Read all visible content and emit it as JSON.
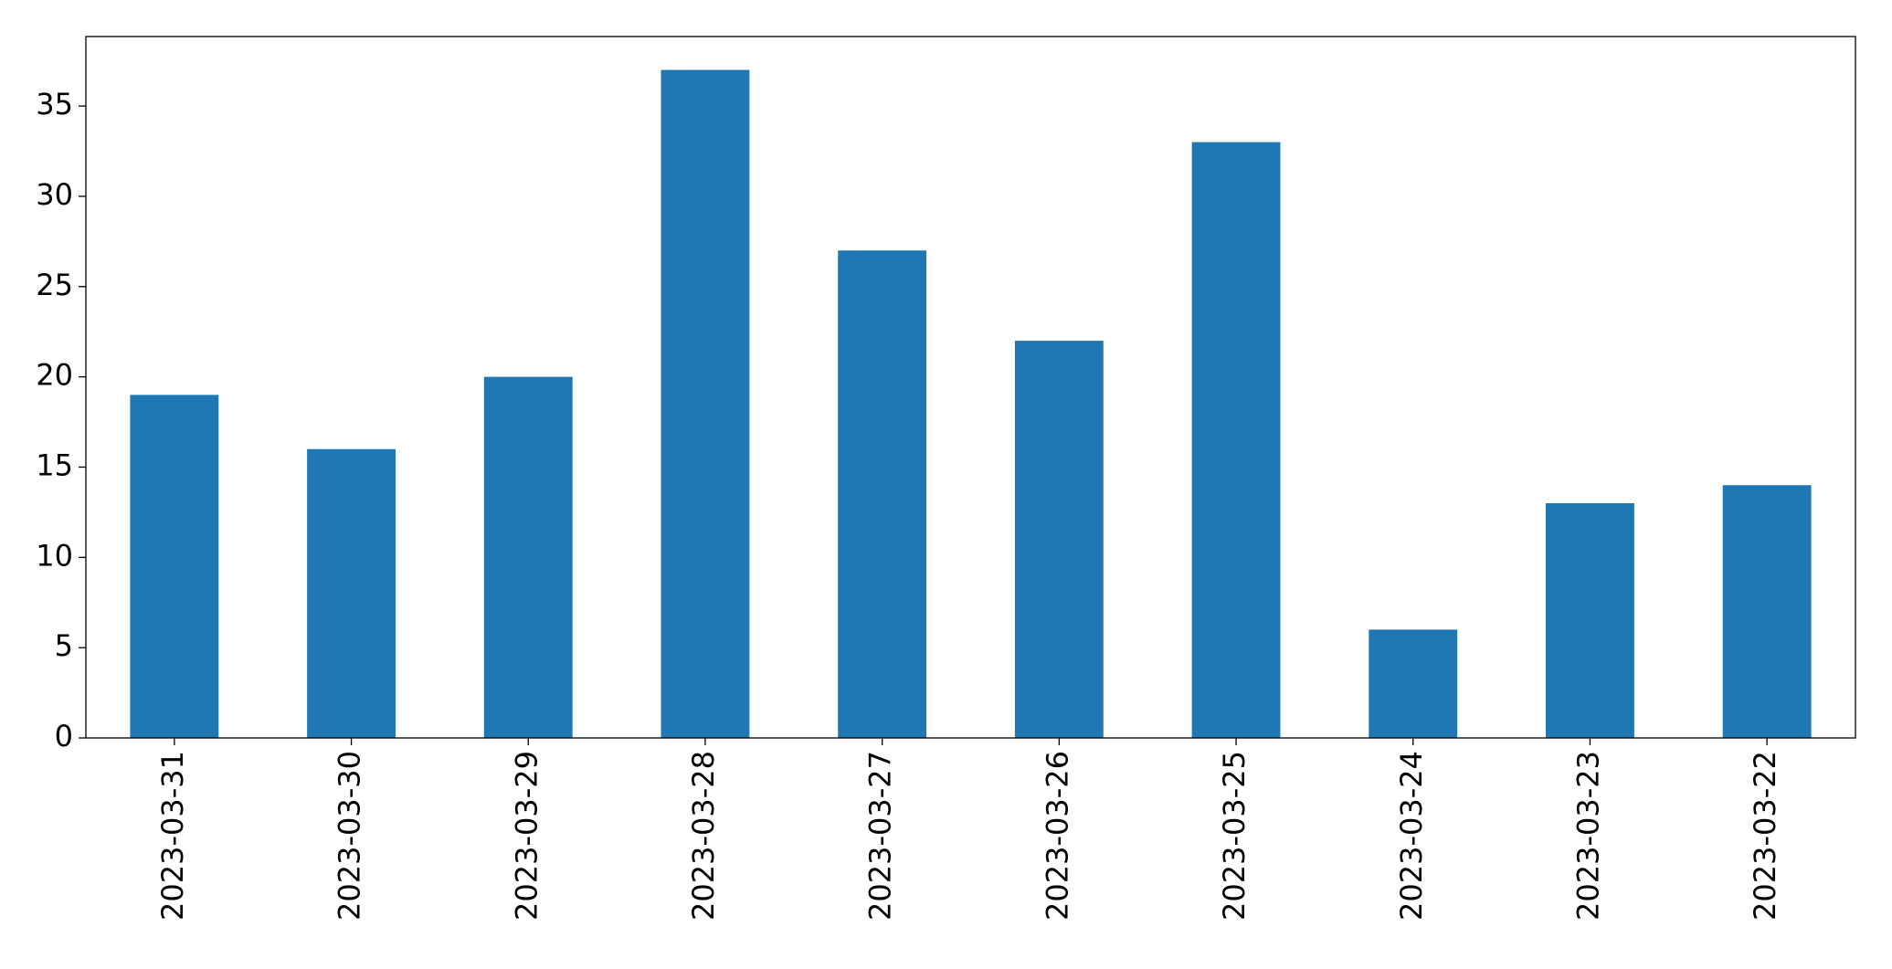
{
  "chart_data": {
    "type": "bar",
    "categories": [
      "2023-03-31",
      "2023-03-30",
      "2023-03-29",
      "2023-03-28",
      "2023-03-27",
      "2023-03-26",
      "2023-03-25",
      "2023-03-24",
      "2023-03-23",
      "2023-03-22"
    ],
    "values": [
      19,
      16,
      20,
      37,
      27,
      22,
      33,
      6,
      13,
      14
    ],
    "color": "#1f77b4",
    "ylim": [
      0,
      38.85
    ],
    "yticks": [
      0,
      5,
      10,
      15,
      20,
      25,
      30,
      35
    ],
    "grid": false
  }
}
